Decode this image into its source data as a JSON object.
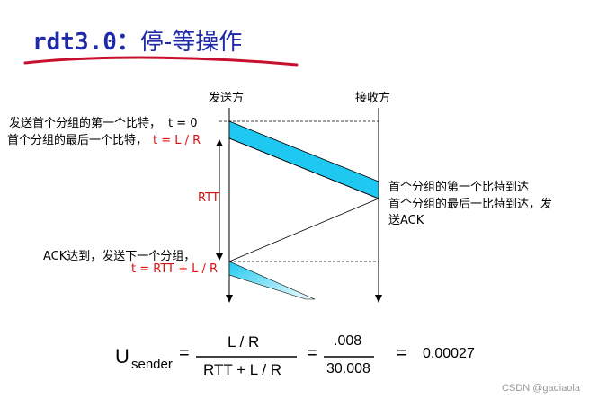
{
  "title": {
    "prefix": "rdt3.0：",
    "suffix": "停-等操作"
  },
  "colors": {
    "title": "#1f2aa8",
    "underline": "#c8102e",
    "packet": "#1ec8f0",
    "red_text": "#e01010"
  },
  "columns": {
    "sender": "发送方",
    "receiver": "接收方"
  },
  "sender_labels": {
    "first_bit": "发送首个分组的第一个比特，",
    "first_bit_time": "t = 0",
    "last_bit": "首个分组的最后一个比特，",
    "last_bit_time": "t = L / R",
    "rtt": "RTT",
    "ack_arrive": "ACK达到，发送下一个分组，",
    "ack_time": "t = RTT + L / R"
  },
  "receiver_labels": {
    "first_bit_arrive": "首个分组的第一个比特到达",
    "last_bit_arrive": "首个分组的最后一比特到达，发",
    "send_ack": "送ACK"
  },
  "formula": {
    "U": "U",
    "subscript": "sender",
    "eq1": "=",
    "numerator": "L / R",
    "denominator": "RTT + L / R",
    "eq2": "=",
    "num2": ".008",
    "den2": "30.008",
    "eq3": "=",
    "result": "0.00027"
  },
  "watermark": "CSDN @gadiaola"
}
